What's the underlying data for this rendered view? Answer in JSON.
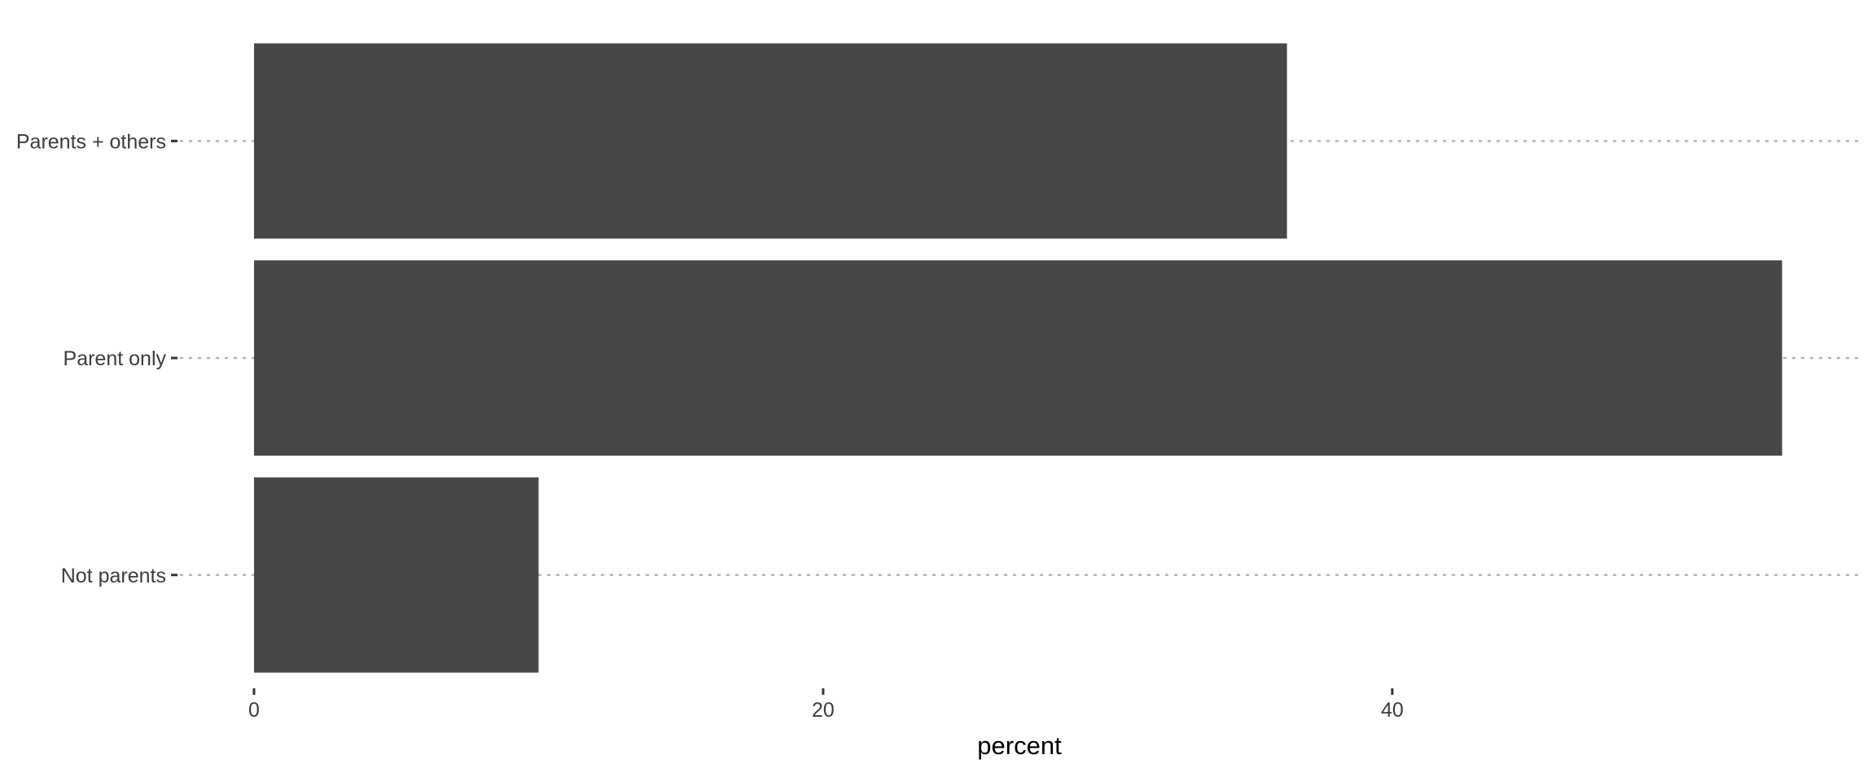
{
  "chart_data": {
    "type": "bar",
    "orientation": "horizontal",
    "categories": [
      "Parents + others",
      "Parent only",
      "Not parents"
    ],
    "values": [
      36.3,
      53.7,
      10.0
    ],
    "xlabel": "percent",
    "ylabel": "",
    "xlim": [
      0,
      56.6
    ],
    "x_ticks": [
      0,
      20,
      40
    ],
    "x_tick_labels": [
      "0",
      "20",
      "40"
    ],
    "grid": "horizontal dotted lines at category positions",
    "legend": "none",
    "colors": {
      "bar": "#474747",
      "grid": "#b3b3b3",
      "tick_mark": "#333333",
      "tick_text": "#3c3c3c",
      "axis_title": "#000000",
      "background": "#ffffff"
    }
  }
}
